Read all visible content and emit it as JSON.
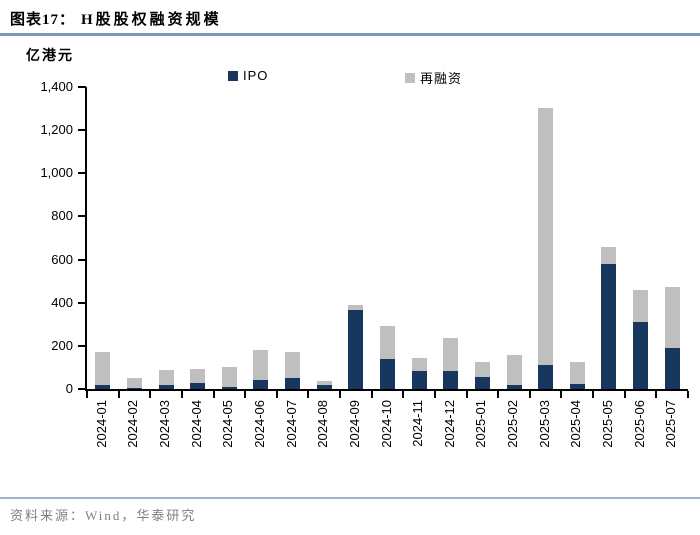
{
  "header": {
    "title_prefix": "图表17：",
    "title_text": "H股股权融资规模"
  },
  "unit_label": "亿港元",
  "chart_data": {
    "type": "bar",
    "stacked": true,
    "title": "H股股权融资规模",
    "ylabel": "亿港元",
    "ylim": [
      0,
      1400
    ],
    "grid": false,
    "legend_position": "top",
    "yticks": [
      {
        "value": 0,
        "label": "0"
      },
      {
        "value": 200,
        "label": "200"
      },
      {
        "value": 400,
        "label": "400"
      },
      {
        "value": 600,
        "label": "600"
      },
      {
        "value": 800,
        "label": "800"
      },
      {
        "value": 1000,
        "label": "1,000"
      },
      {
        "value": 1200,
        "label": "1,200"
      },
      {
        "value": 1400,
        "label": "1,400"
      }
    ],
    "categories": [
      "2024-01",
      "2024-02",
      "2024-03",
      "2024-04",
      "2024-05",
      "2024-06",
      "2024-07",
      "2024-08",
      "2024-09",
      "2024-10",
      "2024-11",
      "2024-12",
      "2025-01",
      "2025-02",
      "2025-03",
      "2025-04",
      "2025-05",
      "2025-06",
      "2025-07"
    ],
    "series": [
      {
        "name": "IPO",
        "color": "#17375E",
        "values": [
          20,
          3,
          18,
          30,
          8,
          40,
          52,
          20,
          365,
          140,
          85,
          85,
          55,
          20,
          110,
          22,
          580,
          310,
          190
        ]
      },
      {
        "name": "再融资",
        "color": "#BFBFBF",
        "values": [
          150,
          47,
          72,
          62,
          92,
          140,
          118,
          15,
          25,
          150,
          60,
          150,
          70,
          140,
          1195,
          105,
          80,
          150,
          285
        ]
      }
    ]
  },
  "footer": {
    "source_text": "资料来源：Wind，华泰研究"
  },
  "colors": {
    "ipo": "#17375E",
    "refinancing": "#BFBFBF",
    "header_rule": "#8096B8",
    "footer_rule": "#9FB3CC",
    "source_text": "#7F7F7F",
    "axis": "#000000"
  }
}
